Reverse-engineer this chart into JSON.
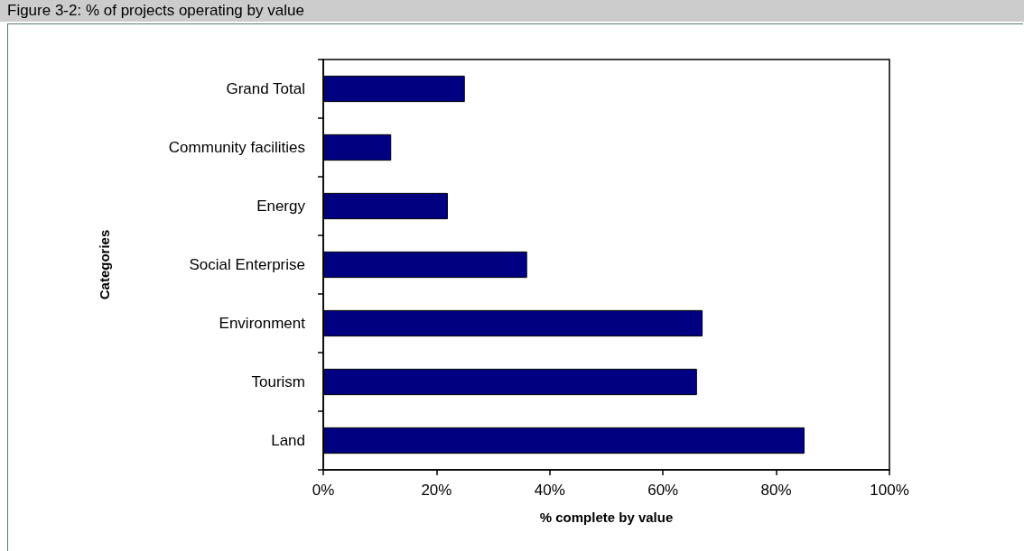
{
  "chart_data": {
    "type": "bar",
    "orientation": "horizontal",
    "title": "Figure 3-2: % of projects operating by value",
    "xlabel": "% complete by value",
    "ylabel": "Categories",
    "categories": [
      "Grand Total",
      "Community facilities",
      "Energy",
      "Social Enterprise",
      "Environment",
      "Tourism",
      "Land"
    ],
    "values": [
      25,
      12,
      22,
      36,
      67,
      66,
      85
    ],
    "color": "#000080",
    "xlim": [
      0,
      100
    ],
    "xticks": [
      {
        "value": 0,
        "label": "0%"
      },
      {
        "value": 20,
        "label": "20%"
      },
      {
        "value": 40,
        "label": "40%"
      },
      {
        "value": 60,
        "label": "60%"
      },
      {
        "value": 80,
        "label": "80%"
      },
      {
        "value": 100,
        "label": "100%"
      }
    ],
    "grid": false
  }
}
